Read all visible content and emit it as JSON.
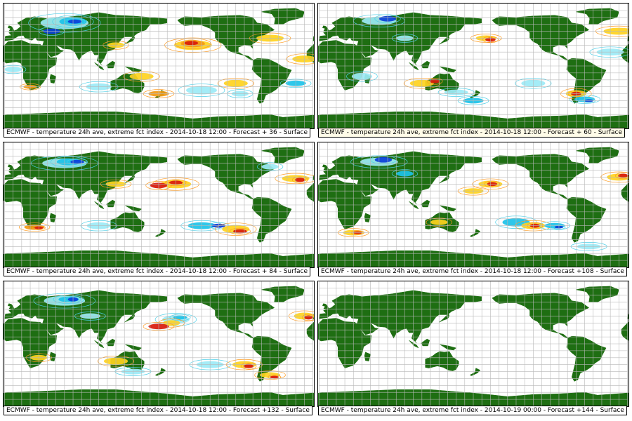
{
  "colors": {
    "land": "#1e6e12",
    "grid": "#b8b8b8",
    "warm_strong": "#d81a0c",
    "warm_medium": "#f39a14",
    "warm_light": "#ffd21e",
    "warm_contour": "#ff9a1e",
    "cold_light": "#9ceaf6",
    "cold_medium": "#1cc2e8",
    "cold_strong": "#0b3fd8",
    "cold_contour": "#4ccfe8"
  },
  "panels": [
    {
      "id": "p36",
      "caption": "ECMWF - temperature 24h ave, extreme fct index - 2014-10-18 12:00 - Forecast + 36 - Surface",
      "has_anomalies": true,
      "highlight_caption": false
    },
    {
      "id": "p60",
      "caption": "ECMWF - temperature 24h ave, extreme fct index - 2014-10-18 12:00 - Forecast + 60 - Surface",
      "has_anomalies": true,
      "highlight_caption": true
    },
    {
      "id": "p84",
      "caption": "ECMWF - temperature 24h ave, extreme fct index - 2014-10-18 12:00 - Forecast + 84 - Surface",
      "has_anomalies": true,
      "highlight_caption": false
    },
    {
      "id": "p108",
      "caption": "ECMWF - temperature 24h ave, extreme fct index - 2014-10-18 12:00 - Forecast +108 - Surface",
      "has_anomalies": true,
      "highlight_caption": false
    },
    {
      "id": "p132",
      "caption": "ECMWF - temperature 24h ave, extreme fct index - 2014-10-18 12:00 - Forecast +132 - Surface",
      "has_anomalies": true,
      "highlight_caption": false
    },
    {
      "id": "p144",
      "caption": "ECMWF - temperature 24h ave, extreme fct index - 2014-10-19 00:00 - Forecast +144 - Surface",
      "has_anomalies": false,
      "highlight_caption": false
    }
  ]
}
